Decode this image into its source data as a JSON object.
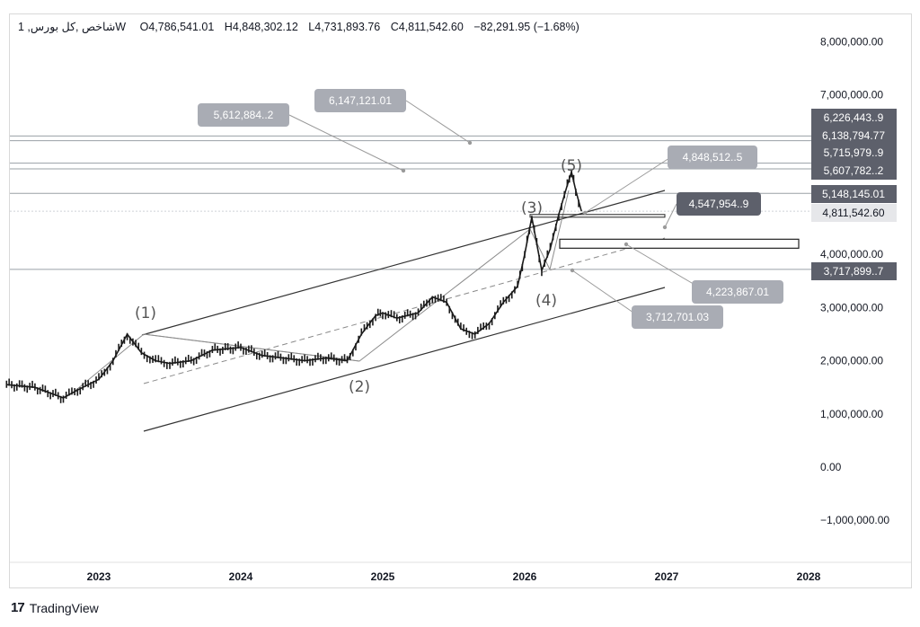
{
  "header": {
    "symbol": "شاخص ,کل بورس, 1W",
    "open": "O4,786,541.01",
    "high": "H4,848,302.12",
    "low": "L4,731,893.76",
    "close": "C4,811,542.60",
    "change": "−82,291.95 (−1.68%)"
  },
  "brand": {
    "logo": "17",
    "name": "TradingView"
  },
  "colors": {
    "candle": "#1a1a1a",
    "line": "#333333",
    "gray_callout": "#a9acb4",
    "dark_tag": "#5d606b",
    "grid_line": "#9aa0a6"
  },
  "chart_data": {
    "type": "line",
    "title": "",
    "xlabel": "",
    "ylabel": "",
    "ylim": [
      -1300000,
      8500000
    ],
    "x_ticks": [
      "2023",
      "2024",
      "2025",
      "2026",
      "2027",
      "2028"
    ],
    "y_ticks": [
      "8,000,000.00",
      "7,000,000.00",
      "4,000,000.00",
      "3,000,000.00",
      "2,000,000.00",
      "1,000,000.00",
      "0.00",
      "−1,000,000.00"
    ],
    "series": [
      {
        "x": [
          2022.35,
          2022.55,
          2022.75,
          2022.85,
          2023.0,
          2023.1,
          2023.2,
          2023.3,
          2023.4,
          2023.5,
          2023.65,
          2023.8,
          2024.0,
          2024.15,
          2024.3,
          2024.45,
          2024.6,
          2024.75,
          2024.85,
          2024.95,
          2025.0,
          2025.1,
          2025.25,
          2025.35,
          2025.45,
          2025.55,
          2025.65,
          2025.75,
          2025.85,
          2025.95,
          2026.0,
          2026.05,
          2026.12,
          2026.18,
          2026.24,
          2026.3,
          2026.33,
          2026.36,
          2026.4
        ],
        "values": [
          1550000,
          1500000,
          1300000,
          1450000,
          1650000,
          2000000,
          2500000,
          2150000,
          2000000,
          1950000,
          2000000,
          2200000,
          2250000,
          2100000,
          2050000,
          2000000,
          2050000,
          2000000,
          2500000,
          2850000,
          2900000,
          2800000,
          2900000,
          3200000,
          3100000,
          2600000,
          2500000,
          2700000,
          3100000,
          3400000,
          4000000,
          4700000,
          3700000,
          4100000,
          4750000,
          5300000,
          5550000,
          5200000,
          4811542
        ]
      }
    ],
    "wave_labels": [
      "(1)",
      "(2)",
      "(3)",
      "(4)",
      "(5)"
    ],
    "callouts": [
      "5,612,884..2",
      "6,147,121.01",
      "4,848,512..5",
      "4,547,954..9",
      "4,223,867.01",
      "3,712,701.03"
    ],
    "price_tags": [
      "6,226,443..9",
      "6,138,794.77",
      "5,715,979..9",
      "5,607,782..2",
      "5,148,145.01",
      "4,811,542.60",
      "3,717,899..7"
    ]
  }
}
